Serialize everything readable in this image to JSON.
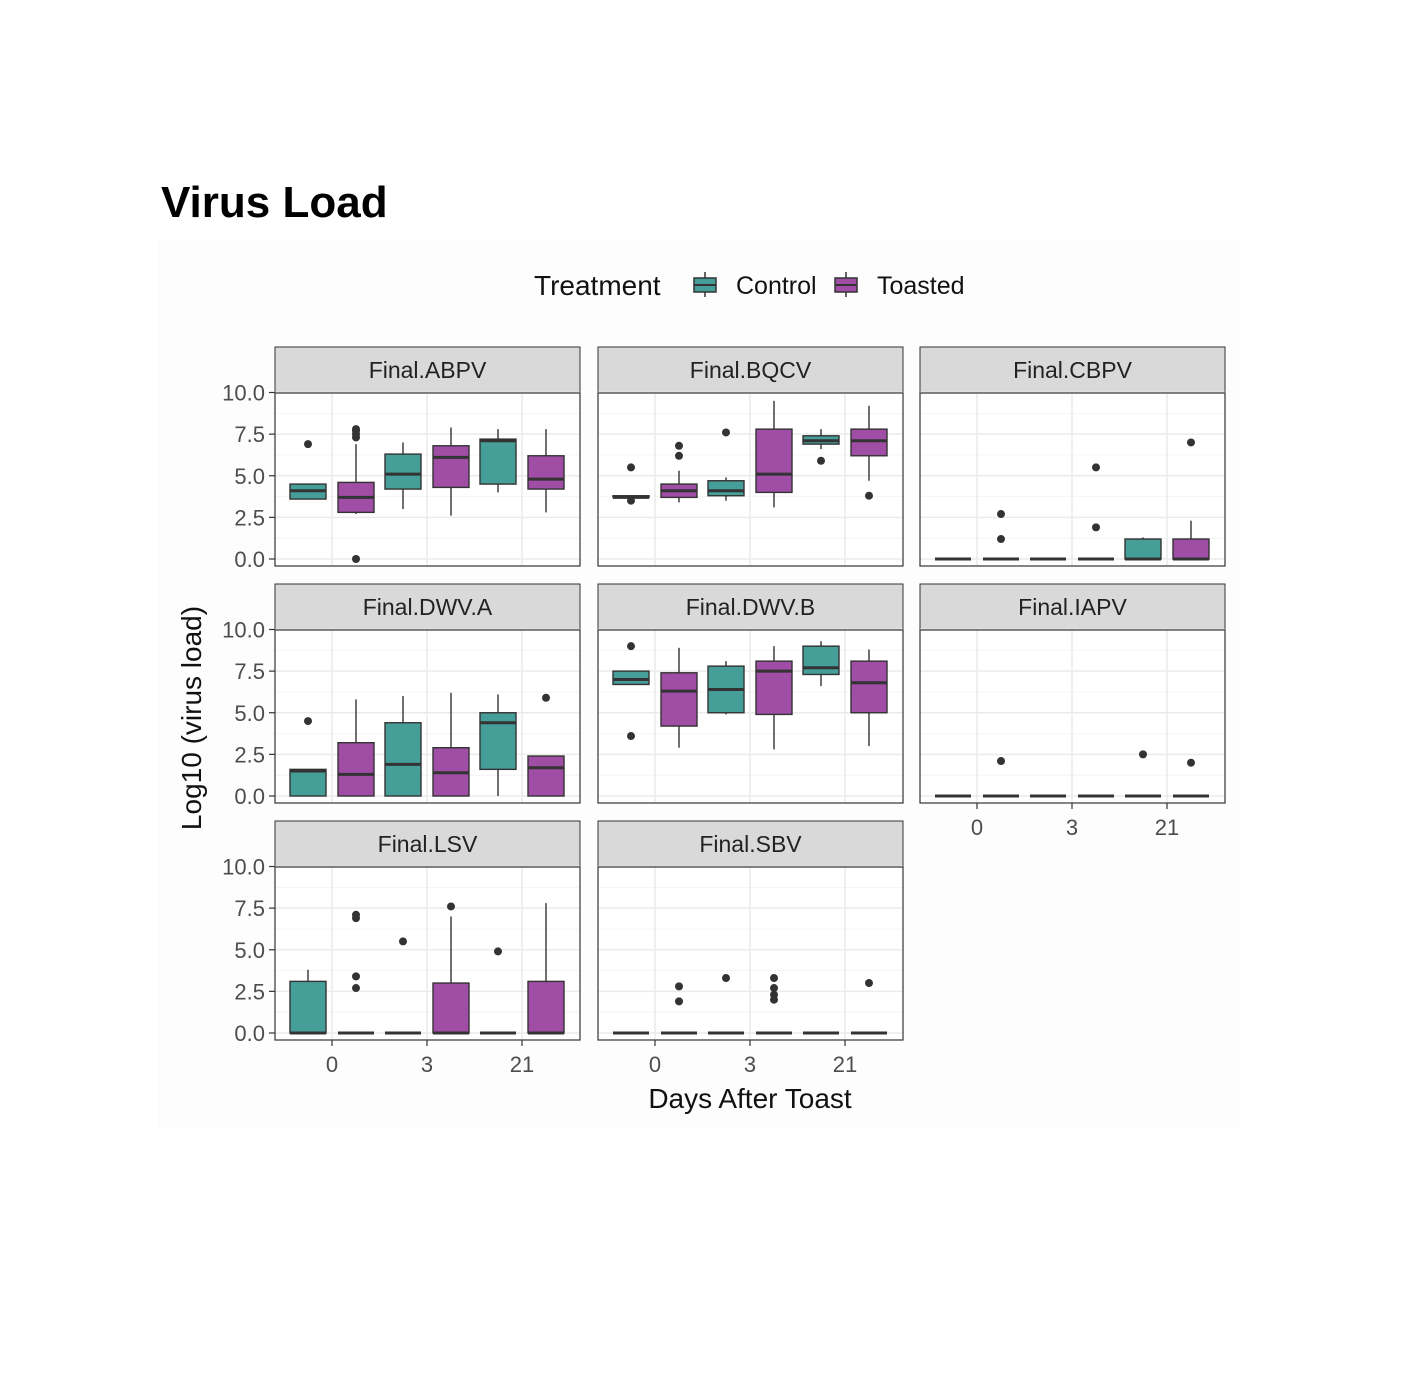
{
  "page": {
    "title": "Virus Load"
  },
  "colors": {
    "Control": "#469e99",
    "Toasted": "#a04da5",
    "strip": "#d9d9d9",
    "panel_border": "#333333",
    "grid_major": "#ebebeb",
    "grid_minor": "#f4f4f4",
    "points": "#333333"
  },
  "chart_data": {
    "type": "box",
    "legend": {
      "title": "Treatment",
      "position": "top",
      "entries": [
        "Control",
        "Toasted"
      ]
    },
    "ylabel": "Log10 (virus load)",
    "xlabel": "Days After Toast",
    "categories": [
      "0",
      "3",
      "21"
    ],
    "yticks": [
      "0.0",
      "2.5",
      "5.0",
      "7.5",
      "10.0"
    ],
    "ylim": [
      0,
      10.3
    ],
    "panels": [
      {
        "name": "Final.ABPV",
        "boxes": [
          {
            "day": "0",
            "group": "Control",
            "q1": 3.6,
            "median": 4.1,
            "q3": 4.5,
            "lo": 3.6,
            "hi": 4.5,
            "outliers": [
              6.9
            ]
          },
          {
            "day": "0",
            "group": "Toasted",
            "q1": 2.8,
            "median": 3.7,
            "q3": 4.6,
            "lo": 2.7,
            "hi": 6.9,
            "outliers": [
              0.0,
              7.3,
              7.5,
              7.7,
              7.8
            ]
          },
          {
            "day": "3",
            "group": "Control",
            "q1": 4.2,
            "median": 5.1,
            "q3": 6.3,
            "lo": 3.0,
            "hi": 7.0
          },
          {
            "day": "3",
            "group": "Toasted",
            "q1": 4.3,
            "median": 6.1,
            "q3": 6.8,
            "lo": 2.6,
            "hi": 7.9
          },
          {
            "day": "21",
            "group": "Control",
            "q1": 4.5,
            "median": 7.1,
            "q3": 7.2,
            "lo": 4.0,
            "hi": 7.8
          },
          {
            "day": "21",
            "group": "Toasted",
            "q1": 4.2,
            "median": 4.8,
            "q3": 6.2,
            "lo": 2.8,
            "hi": 7.8
          }
        ]
      },
      {
        "name": "Final.BQCV",
        "boxes": [
          {
            "day": "0",
            "group": "Control",
            "q1": 3.7,
            "median": 3.7,
            "q3": 3.8,
            "lo": 3.7,
            "hi": 3.8,
            "outliers": [
              3.5,
              5.5
            ]
          },
          {
            "day": "0",
            "group": "Toasted",
            "q1": 3.7,
            "median": 4.1,
            "q3": 4.5,
            "lo": 3.4,
            "hi": 5.3,
            "outliers": [
              6.2,
              6.8
            ]
          },
          {
            "day": "3",
            "group": "Control",
            "q1": 3.8,
            "median": 4.1,
            "q3": 4.7,
            "lo": 3.5,
            "hi": 4.9,
            "outliers": [
              7.6
            ]
          },
          {
            "day": "3",
            "group": "Toasted",
            "q1": 4.0,
            "median": 5.1,
            "q3": 7.8,
            "lo": 3.1,
            "hi": 9.5
          },
          {
            "day": "21",
            "group": "Control",
            "q1": 6.9,
            "median": 7.1,
            "q3": 7.4,
            "lo": 6.6,
            "hi": 7.8,
            "outliers": [
              5.9
            ]
          },
          {
            "day": "21",
            "group": "Toasted",
            "q1": 6.2,
            "median": 7.1,
            "q3": 7.8,
            "lo": 4.7,
            "hi": 9.2,
            "outliers": [
              3.8
            ]
          }
        ]
      },
      {
        "name": "Final.CBPV",
        "boxes": [
          {
            "day": "0",
            "group": "Control",
            "q1": 0.0,
            "median": 0.0,
            "q3": 0.0,
            "lo": 0.0,
            "hi": 0.0
          },
          {
            "day": "0",
            "group": "Toasted",
            "q1": 0.0,
            "median": 0.0,
            "q3": 0.0,
            "lo": 0.0,
            "hi": 0.0,
            "outliers": [
              1.2,
              2.7
            ]
          },
          {
            "day": "3",
            "group": "Control",
            "q1": 0.0,
            "median": 0.0,
            "q3": 0.0,
            "lo": 0.0,
            "hi": 0.0
          },
          {
            "day": "3",
            "group": "Toasted",
            "q1": 0.0,
            "median": 0.0,
            "q3": 0.0,
            "lo": 0.0,
            "hi": 0.0,
            "outliers": [
              1.9,
              5.5
            ]
          },
          {
            "day": "21",
            "group": "Control",
            "q1": 0.0,
            "median": 0.0,
            "q3": 1.2,
            "lo": 0.0,
            "hi": 1.3
          },
          {
            "day": "21",
            "group": "Toasted",
            "q1": 0.0,
            "median": 0.0,
            "q3": 1.2,
            "lo": 0.0,
            "hi": 2.3,
            "outliers": [
              7.0
            ]
          }
        ]
      },
      {
        "name": "Final.DWV.A",
        "boxes": [
          {
            "day": "0",
            "group": "Control",
            "q1": 0.0,
            "median": 1.5,
            "q3": 1.6,
            "lo": 0.0,
            "hi": 1.6,
            "outliers": [
              4.5
            ]
          },
          {
            "day": "0",
            "group": "Toasted",
            "q1": 0.0,
            "median": 1.3,
            "q3": 3.2,
            "lo": 0.0,
            "hi": 5.8
          },
          {
            "day": "3",
            "group": "Control",
            "q1": 0.0,
            "median": 1.9,
            "q3": 4.4,
            "lo": 0.0,
            "hi": 6.0
          },
          {
            "day": "3",
            "group": "Toasted",
            "q1": 0.0,
            "median": 1.4,
            "q3": 2.9,
            "lo": 0.0,
            "hi": 6.2
          },
          {
            "day": "21",
            "group": "Control",
            "q1": 1.6,
            "median": 4.4,
            "q3": 5.0,
            "lo": 0.0,
            "hi": 6.1
          },
          {
            "day": "21",
            "group": "Toasted",
            "q1": 0.0,
            "median": 1.7,
            "q3": 2.4,
            "lo": 0.0,
            "hi": 2.4,
            "outliers": [
              5.9
            ]
          }
        ]
      },
      {
        "name": "Final.DWV.B",
        "boxes": [
          {
            "day": "0",
            "group": "Control",
            "q1": 6.7,
            "median": 7.0,
            "q3": 7.5,
            "lo": 6.7,
            "hi": 7.5,
            "outliers": [
              3.6,
              9.0
            ]
          },
          {
            "day": "0",
            "group": "Toasted",
            "q1": 4.2,
            "median": 6.3,
            "q3": 7.4,
            "lo": 2.9,
            "hi": 8.9
          },
          {
            "day": "3",
            "group": "Control",
            "q1": 5.0,
            "median": 6.4,
            "q3": 7.8,
            "lo": 4.9,
            "hi": 8.1
          },
          {
            "day": "3",
            "group": "Toasted",
            "q1": 4.9,
            "median": 7.5,
            "q3": 8.1,
            "lo": 2.8,
            "hi": 9.0
          },
          {
            "day": "21",
            "group": "Control",
            "q1": 7.3,
            "median": 7.7,
            "q3": 9.0,
            "lo": 6.6,
            "hi": 9.3
          },
          {
            "day": "21",
            "group": "Toasted",
            "q1": 5.0,
            "median": 6.8,
            "q3": 8.1,
            "lo": 3.0,
            "hi": 8.8
          }
        ]
      },
      {
        "name": "Final.IAPV",
        "boxes": [
          {
            "day": "0",
            "group": "Control",
            "q1": 0.0,
            "median": 0.0,
            "q3": 0.0,
            "lo": 0.0,
            "hi": 0.0
          },
          {
            "day": "0",
            "group": "Toasted",
            "q1": 0.0,
            "median": 0.0,
            "q3": 0.0,
            "lo": 0.0,
            "hi": 0.0,
            "outliers": [
              2.1
            ]
          },
          {
            "day": "3",
            "group": "Control",
            "q1": 0.0,
            "median": 0.0,
            "q3": 0.0,
            "lo": 0.0,
            "hi": 0.0
          },
          {
            "day": "3",
            "group": "Toasted",
            "q1": 0.0,
            "median": 0.0,
            "q3": 0.0,
            "lo": 0.0,
            "hi": 0.0
          },
          {
            "day": "21",
            "group": "Control",
            "q1": 0.0,
            "median": 0.0,
            "q3": 0.0,
            "lo": 0.0,
            "hi": 0.0,
            "outliers": [
              2.5
            ]
          },
          {
            "day": "21",
            "group": "Toasted",
            "q1": 0.0,
            "median": 0.0,
            "q3": 0.0,
            "lo": 0.0,
            "hi": 0.0,
            "outliers": [
              2.0
            ]
          }
        ]
      },
      {
        "name": "Final.LSV",
        "boxes": [
          {
            "day": "0",
            "group": "Control",
            "q1": 0.0,
            "median": 0.0,
            "q3": 3.1,
            "lo": 0.0,
            "hi": 3.8
          },
          {
            "day": "0",
            "group": "Toasted",
            "q1": 0.0,
            "median": 0.0,
            "q3": 0.0,
            "lo": 0.0,
            "hi": 0.0,
            "outliers": [
              2.7,
              3.4,
              6.9,
              7.1
            ]
          },
          {
            "day": "3",
            "group": "Control",
            "q1": 0.0,
            "median": 0.0,
            "q3": 0.0,
            "lo": 0.0,
            "hi": 0.0,
            "outliers": [
              5.5
            ]
          },
          {
            "day": "3",
            "group": "Toasted",
            "q1": 0.0,
            "median": 0.0,
            "q3": 3.0,
            "lo": 0.0,
            "hi": 7.0,
            "outliers": [
              7.6
            ]
          },
          {
            "day": "21",
            "group": "Control",
            "q1": 0.0,
            "median": 0.0,
            "q3": 0.0,
            "lo": 0.0,
            "hi": 0.0,
            "outliers": [
              4.9
            ]
          },
          {
            "day": "21",
            "group": "Toasted",
            "q1": 0.0,
            "median": 0.0,
            "q3": 3.1,
            "lo": 0.0,
            "hi": 7.8
          }
        ]
      },
      {
        "name": "Final.SBV",
        "boxes": [
          {
            "day": "0",
            "group": "Control",
            "q1": 0.0,
            "median": 0.0,
            "q3": 0.0,
            "lo": 0.0,
            "hi": 0.0
          },
          {
            "day": "0",
            "group": "Toasted",
            "q1": 0.0,
            "median": 0.0,
            "q3": 0.0,
            "lo": 0.0,
            "hi": 0.0,
            "outliers": [
              1.9,
              2.8
            ]
          },
          {
            "day": "3",
            "group": "Control",
            "q1": 0.0,
            "median": 0.0,
            "q3": 0.0,
            "lo": 0.0,
            "hi": 0.0,
            "outliers": [
              3.3
            ]
          },
          {
            "day": "3",
            "group": "Toasted",
            "q1": 0.0,
            "median": 0.0,
            "q3": 0.0,
            "lo": 0.0,
            "hi": 0.0,
            "outliers": [
              2.0,
              2.3,
              2.7,
              3.3
            ]
          },
          {
            "day": "21",
            "group": "Control",
            "q1": 0.0,
            "median": 0.0,
            "q3": 0.0,
            "lo": 0.0,
            "hi": 0.0
          },
          {
            "day": "21",
            "group": "Toasted",
            "q1": 0.0,
            "median": 0.0,
            "q3": 0.0,
            "lo": 0.0,
            "hi": 0.0,
            "outliers": [
              3.0
            ]
          }
        ]
      }
    ]
  }
}
